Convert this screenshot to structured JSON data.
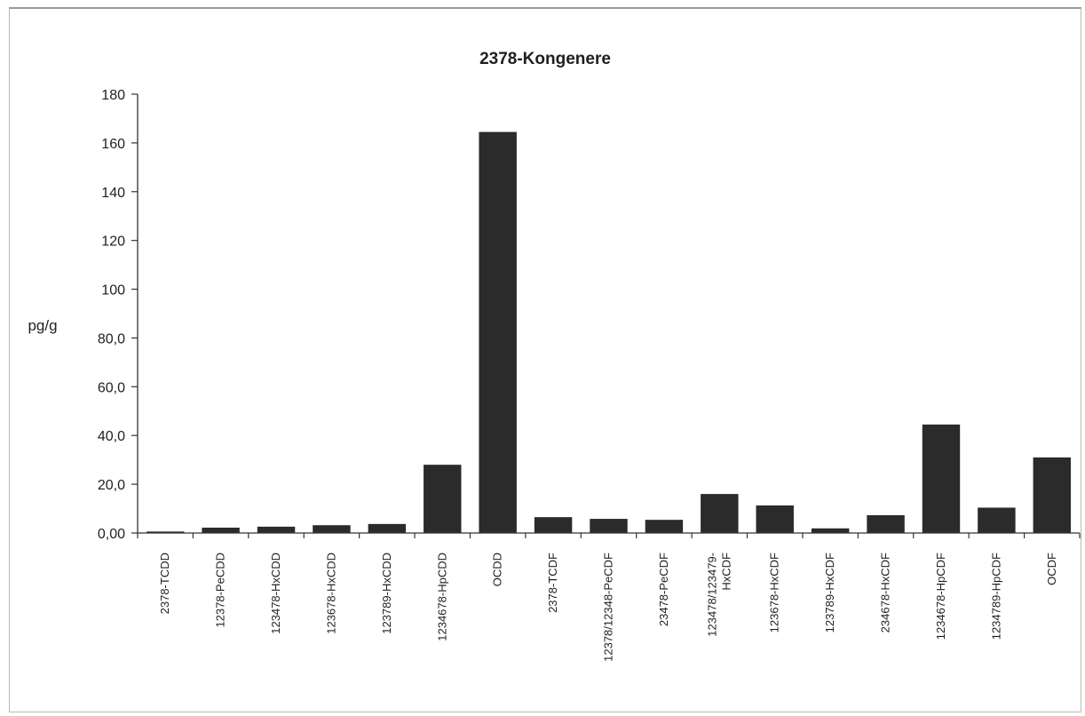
{
  "chart_data": {
    "type": "bar",
    "title": "2378-Kongenere",
    "xlabel": "",
    "ylabel": "pg/g",
    "ylim": [
      0,
      180
    ],
    "yticks": [
      0,
      20,
      40,
      60,
      80,
      100,
      120,
      140,
      160,
      180
    ],
    "ytick_labels": [
      "0,00",
      "20,0",
      "40,0",
      "60,0",
      "80,0",
      "100",
      "120",
      "140",
      "160",
      "180"
    ],
    "categories": [
      "2378-TCDD",
      "12378-PeCDD",
      "123478-HxCDD",
      "123678-HxCDD",
      "123789-HxCDD",
      "1234678-HpCDD",
      "OCDD",
      "2378-TCDF",
      "12378/12348-PeCDF",
      "23478-PeCDF",
      "123478/123479-HxCDF",
      "123678-HxCDF",
      "123789-HxCDF",
      "234678-HxCDF",
      "1234678-HpCDF",
      "1234789-HpCDF",
      "OCDF"
    ],
    "category_labels": [
      [
        "2378-TCDD"
      ],
      [
        "12378-PeCDD"
      ],
      [
        "123478-HxCDD"
      ],
      [
        "123678-HxCDD"
      ],
      [
        "123789-HxCDD"
      ],
      [
        "1234678-HpCDD"
      ],
      [
        "OCDD"
      ],
      [
        "2378-TCDF"
      ],
      [
        "12378/12348-PeCDF"
      ],
      [
        "23478-PeCDF"
      ],
      [
        "123478/123479-",
        "HxCDF"
      ],
      [
        "123678-HxCDF"
      ],
      [
        "123789-HxCDF"
      ],
      [
        "234678-HxCDF"
      ],
      [
        "1234678-HpCDF"
      ],
      [
        "1234789-HpCDF"
      ],
      [
        "OCDF"
      ]
    ],
    "values": [
      0.6,
      2.2,
      2.6,
      3.2,
      3.7,
      28.0,
      164.5,
      6.5,
      5.8,
      5.4,
      16.0,
      11.3,
      1.9,
      7.3,
      44.5,
      10.4,
      31.0
    ],
    "bar_color": "#2b2b2b",
    "grid": false,
    "legend": "none"
  }
}
